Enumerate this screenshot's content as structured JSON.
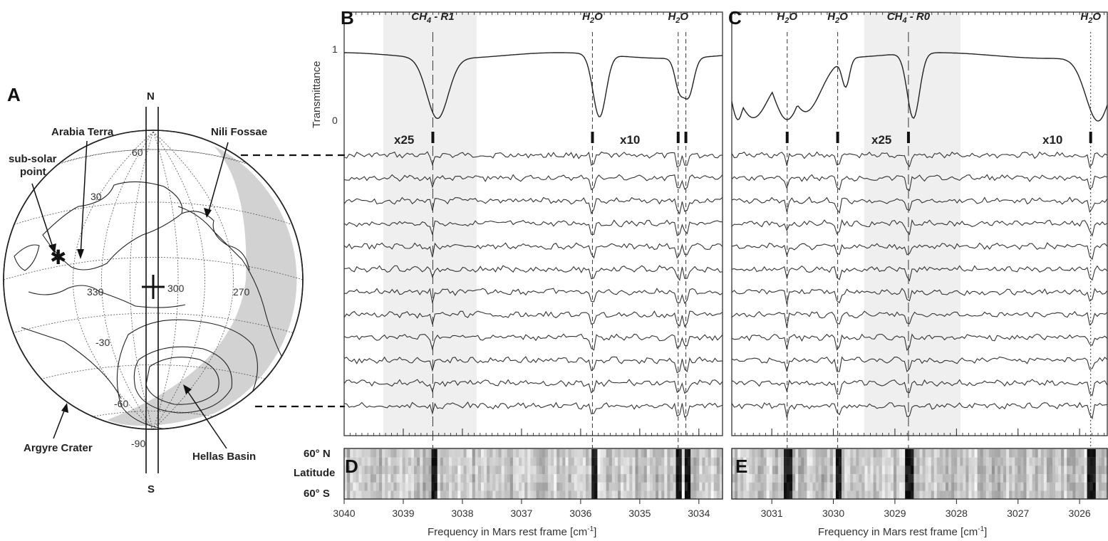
{
  "panels": {
    "A": "A",
    "B": "B",
    "C": "C",
    "D": "D",
    "E": "E"
  },
  "globe": {
    "north": "N",
    "south": "S",
    "labels": {
      "arabia_terra": "Arabia Terra",
      "sub_solar_line1": "sub-solar",
      "sub_solar_line2": "point",
      "nili_fossae": "Nili Fossae",
      "argyre_crater": "Argyre Crater",
      "hellas_basin": "Hellas Basin"
    },
    "lat_labels": [
      "60",
      "30",
      "-30",
      "-60",
      "-90"
    ],
    "lon_labels": [
      "330",
      "300",
      "270"
    ],
    "colors": {
      "night_side": "#cfcfcf",
      "ink": "#222222"
    }
  },
  "spectra": {
    "transmittance_label": "Transmittance",
    "trans_ticks": [
      "1",
      "0"
    ],
    "B": {
      "lines": [
        {
          "label_main": "CH",
          "label_sub": "4",
          "label_tail": " - R1",
          "freq": 3038.5,
          "style": "long-dash"
        },
        {
          "label_main": "H",
          "label_sub": "2",
          "label_tail": "O",
          "freq": 3035.8,
          "style": "dash"
        },
        {
          "label_main": "H",
          "label_sub": "2",
          "label_tail": "O",
          "freq": 3034.35,
          "style": "dash"
        }
      ],
      "extra_dash": 3034.22,
      "scale_left": "x25",
      "scale_right": "x10",
      "shade_range": [
        3038.8,
        3037.75
      ],
      "x_ticks": [
        "3040",
        "3039",
        "3038",
        "3037",
        "3036",
        "3035",
        "3034"
      ]
    },
    "C": {
      "lines": [
        {
          "label_main": "H",
          "label_sub": "2",
          "label_tail": "O",
          "freq": 3030.75,
          "style": "dash"
        },
        {
          "label_main": "H",
          "label_sub": "2",
          "label_tail": "O",
          "freq": 3029.93,
          "style": "dash"
        },
        {
          "label_main": "CH",
          "label_sub": "4",
          "label_tail": " - R0",
          "freq": 3028.78,
          "style": "long-dash"
        },
        {
          "label_main": "H",
          "label_sub": "2",
          "label_tail": "O",
          "freq": 3025.82,
          "style": "dot"
        }
      ],
      "scale_left": "x25",
      "scale_right": "x10",
      "shade_range": [
        3029.6,
        3027.95
      ],
      "x_ticks": [
        "3031",
        "3030",
        "3029",
        "3028",
        "3027",
        "3026"
      ]
    },
    "x_axis_title_main": "Frequency in Mars rest frame [cm",
    "x_axis_title_sup": "-1",
    "x_axis_title_end": "]",
    "lat_map": {
      "top": "60° N",
      "mid": "Latitude",
      "bottom": "60° S"
    }
  }
}
